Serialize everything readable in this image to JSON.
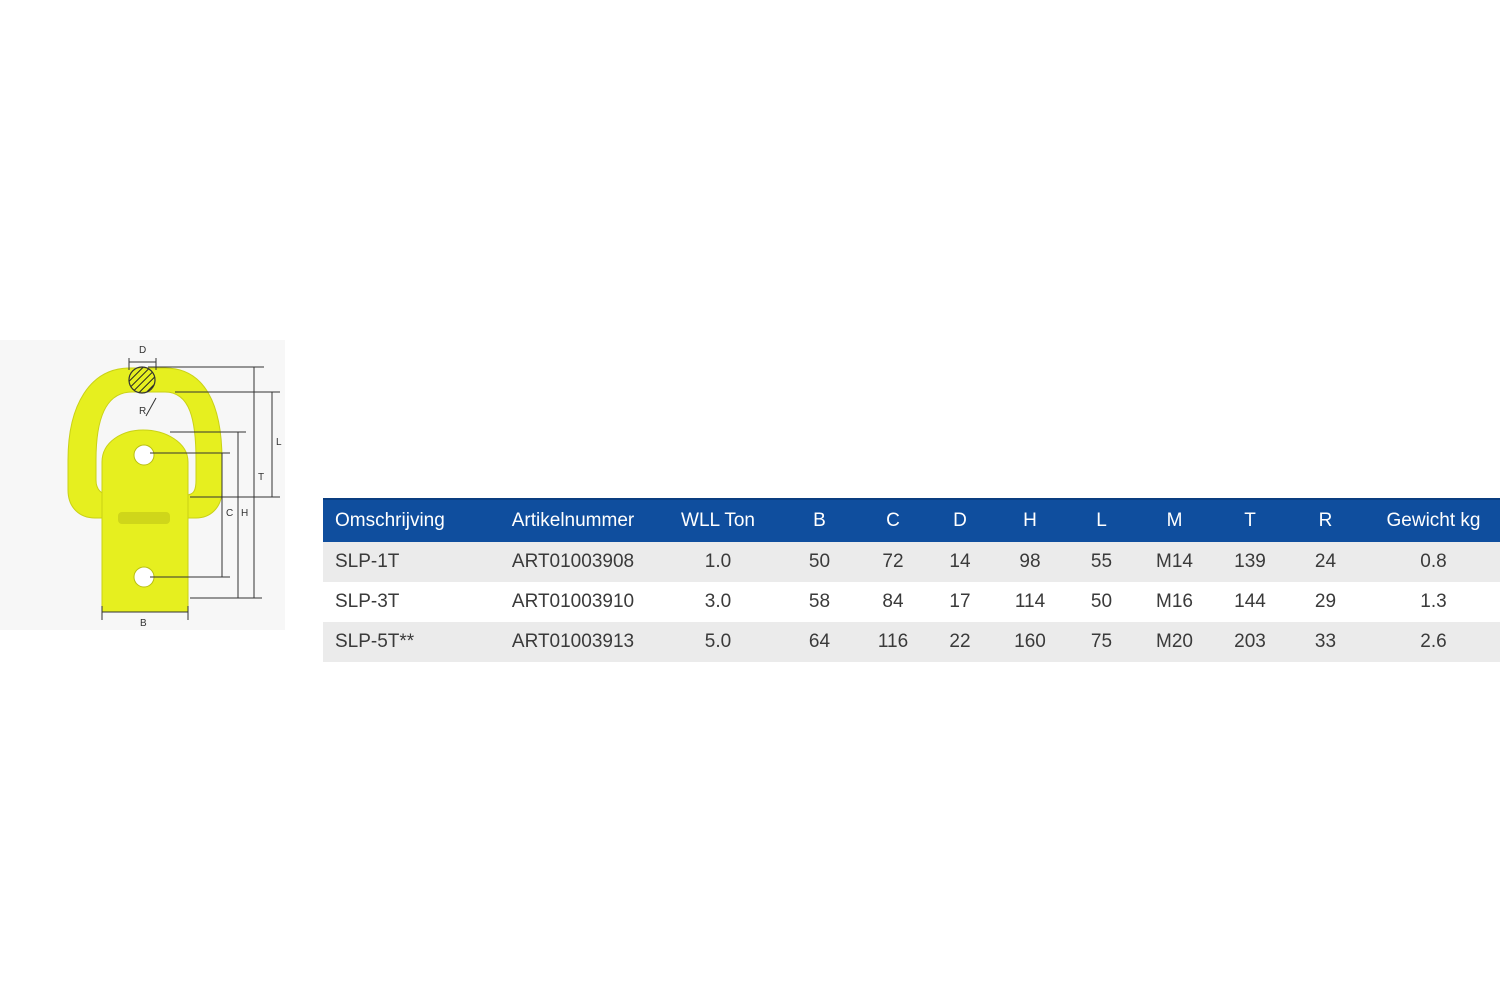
{
  "diagram": {
    "dimension_labels": {
      "D": "D",
      "R": "R",
      "L": "L",
      "T": "T",
      "C": "C",
      "H": "H",
      "B": "B"
    },
    "colors": {
      "body": "#e6ef1f",
      "line": "#333333",
      "panel": "#f7f7f7"
    }
  },
  "table": {
    "header_color": "#0f4e9e",
    "columns": [
      "Omschrijving",
      "Artikelnummer",
      "WLL Ton",
      "B",
      "C",
      "D",
      "H",
      "L",
      "M",
      "T",
      "R",
      "Gewicht kg"
    ],
    "rows": [
      [
        "SLP-1T",
        "ART01003908",
        "1.0",
        "50",
        "72",
        "14",
        "98",
        "55",
        "M14",
        "139",
        "24",
        "0.8"
      ],
      [
        "SLP-3T",
        "ART01003910",
        "3.0",
        "58",
        "84",
        "17",
        "114",
        "50",
        "M16",
        "144",
        "29",
        "1.3"
      ],
      [
        "SLP-5T**",
        "ART01003913",
        "5.0",
        "64",
        "116",
        "22",
        "160",
        "75",
        "M20",
        "203",
        "33",
        "2.6"
      ]
    ]
  }
}
